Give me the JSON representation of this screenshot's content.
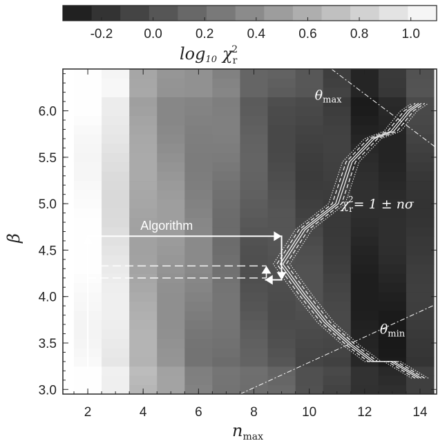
{
  "chart_data": {
    "type": "heatmap",
    "xlabel": "n",
    "xlabel_sub": "max",
    "ylabel": "β",
    "x_ticks": [
      "2",
      "4",
      "6",
      "8",
      "10",
      "12",
      "14"
    ],
    "y_ticks": [
      "3.0",
      "3.5",
      "4.0",
      "4.5",
      "5.0",
      "5.5",
      "6.0"
    ],
    "xlim": [
      1.1,
      14.6
    ],
    "ylim": [
      2.95,
      6.45
    ],
    "colorbar": {
      "label_main": "log",
      "label_sub": "10",
      "label_chi": "χ",
      "label_chi_sub": "r",
      "label_chi_sup": "2",
      "ticks": [
        "-0.2",
        "0.0",
        "0.2",
        "0.4",
        "0.6",
        "0.8",
        "1.0"
      ],
      "tick_values": [
        -0.2,
        0.0,
        0.2,
        0.4,
        0.6,
        0.8,
        1.0
      ],
      "range": [
        -0.35,
        1.1
      ],
      "steps": 13
    },
    "nmax_values": [
      2,
      3,
      4,
      5,
      6,
      7,
      8,
      9,
      10,
      11,
      12,
      13,
      14
    ],
    "beta_values": [
      3.0,
      3.1,
      3.2,
      3.3,
      3.4,
      3.5,
      3.6,
      3.7,
      3.8,
      3.9,
      4.0,
      4.1,
      4.2,
      4.3,
      4.4,
      4.5,
      4.6,
      4.7,
      4.8,
      4.9,
      5.0,
      5.1,
      5.2,
      5.3,
      5.4,
      5.5,
      5.6,
      5.7,
      5.8,
      5.9,
      6.0,
      6.1,
      6.2,
      6.3,
      6.4
    ],
    "column_log_chi2": [
      1.1,
      0.95,
      0.55,
      0.42,
      0.3,
      0.22,
      0.08,
      0.02,
      -0.05,
      -0.12,
      -0.28,
      -0.26,
      -0.12
    ],
    "annotations": {
      "algorithm": "Algorithm",
      "theta_max": "θ",
      "theta_max_sub": "max",
      "theta_min": "θ",
      "theta_min_sub": "min",
      "contour_chi": "χ",
      "contour_chi_sub": "r",
      "contour_chi_sup": "2",
      "contour_text": "= 1 ± nσ"
    },
    "algorithm_path": [
      [
        2.0,
        3.22
      ],
      [
        2.0,
        4.65
      ],
      [
        9.0,
        4.65
      ],
      [
        9.0,
        4.18
      ],
      [
        8.4,
        4.18
      ]
    ],
    "algorithm_dashed_levels": [
      4.2,
      4.33
    ],
    "contour_center": [
      [
        14.0,
        3.12
      ],
      [
        13.0,
        3.3
      ],
      [
        12.3,
        3.3
      ],
      [
        11.5,
        3.48
      ],
      [
        10.6,
        3.72
      ],
      [
        9.8,
        4.02
      ],
      [
        9.0,
        4.35
      ],
      [
        9.8,
        4.72
      ],
      [
        11.0,
        5.0
      ],
      [
        11.5,
        5.45
      ],
      [
        12.3,
        5.7
      ],
      [
        13.0,
        5.78
      ],
      [
        13.6,
        6.0
      ],
      [
        14.0,
        6.08
      ]
    ],
    "theta_max_line": [
      [
        10.8,
        6.45
      ],
      [
        14.6,
        5.6
      ]
    ],
    "theta_min_line": [
      [
        7.5,
        2.95
      ],
      [
        14.6,
        3.92
      ]
    ]
  }
}
